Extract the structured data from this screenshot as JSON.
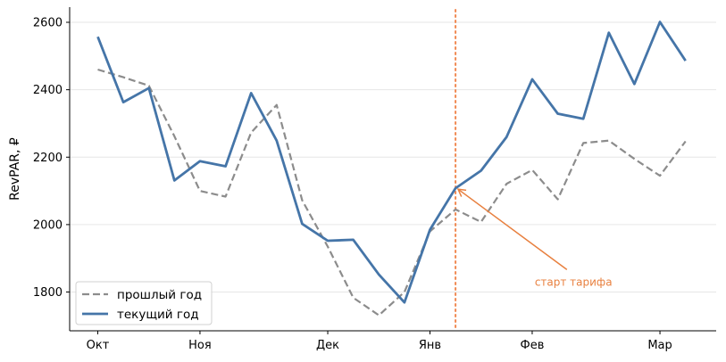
{
  "chart_data": {
    "type": "line",
    "ylabel": "RevPAR, ₽",
    "ylim": [
      1685,
      2645
    ],
    "yticks": [
      1800,
      2000,
      2200,
      2400,
      2600
    ],
    "x_ticks": [
      {
        "label": "Окт",
        "index": 0
      },
      {
        "label": "Ноя",
        "index": 4
      },
      {
        "label": "Дек",
        "index": 9
      },
      {
        "label": "Янв",
        "index": 13
      },
      {
        "label": "Фев",
        "index": 17
      },
      {
        "label": "Мар",
        "index": 22
      }
    ],
    "xlim": [
      -1.1,
      24.2
    ],
    "grid": "horizontal",
    "legend_position": "lower-left",
    "series": [
      {
        "name": "прошлый год",
        "style": "dashed",
        "color": "#8c8c8c",
        "values": [
          2460,
          2437,
          2412,
          2262,
          2100,
          2083,
          2273,
          2355,
          2072,
          1935,
          1783,
          1731,
          1800,
          1980,
          2045,
          2008,
          2121,
          2162,
          2075,
          2242,
          2249,
          2195,
          2145,
          2247
        ]
      },
      {
        "name": "текущий год",
        "style": "solid",
        "color": "#4575a8",
        "values": [
          2557,
          2363,
          2405,
          2131,
          2188,
          2173,
          2390,
          2249,
          2002,
          1952,
          1955,
          1852,
          1769,
          1985,
          2108,
          2160,
          2260,
          2431,
          2329,
          2314,
          2569,
          2417,
          2601,
          2486
        ]
      }
    ],
    "vline": {
      "x": 14,
      "color": "#f08850",
      "style": "dotted"
    },
    "annotation": {
      "text": "старт тарифа",
      "color": "#e8803f",
      "target": {
        "x": 14.1,
        "y": 2105
      },
      "text_pos": {
        "x": 17.1,
        "y": 1840
      }
    }
  }
}
